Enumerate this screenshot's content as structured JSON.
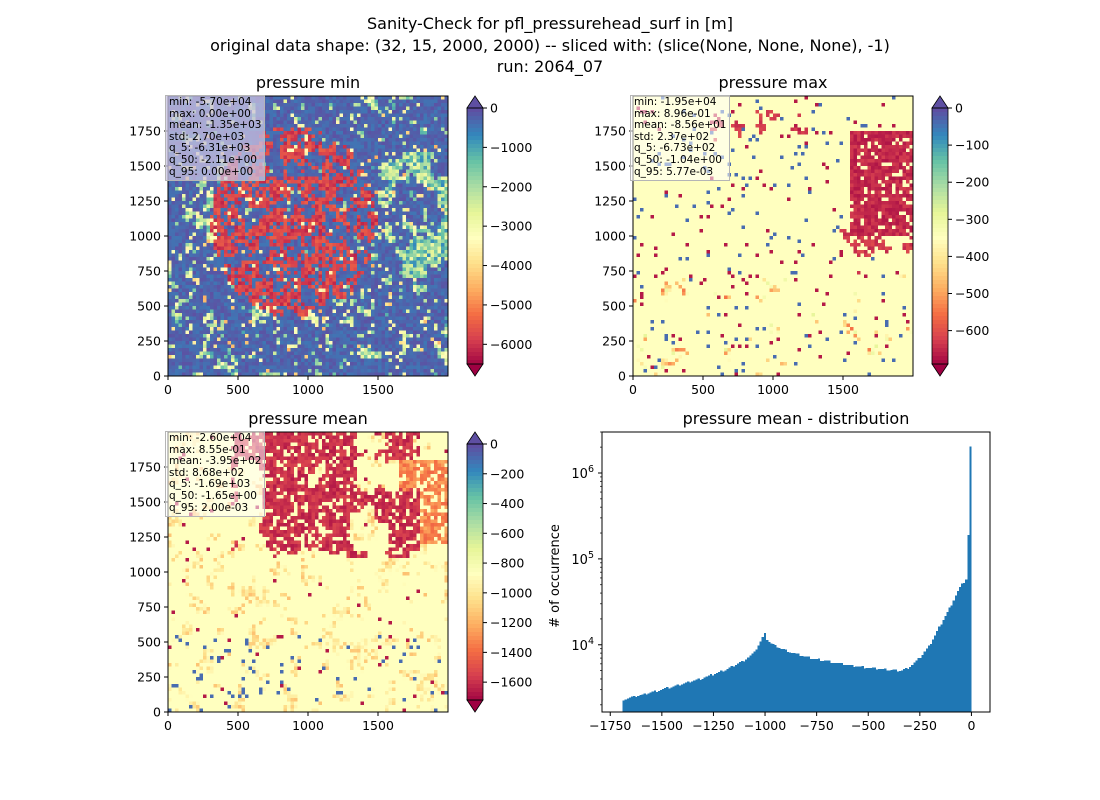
{
  "figure": {
    "title_lines": [
      "Sanity-Check for pfl_pressurehead_surf in [m]",
      "original data shape: (32, 15, 2000, 2000) -- sliced with: (slice(None, None, None), -1)",
      "run: 2064_07"
    ]
  },
  "colors": {
    "spectral": [
      "#9e0142",
      "#d53e4f",
      "#f46d43",
      "#fdae61",
      "#fee08b",
      "#ffffbf",
      "#e6f598",
      "#abdda4",
      "#66c2a5",
      "#3288bd",
      "#5e4fa2"
    ],
    "hist_bar": "#1f77b4"
  },
  "chart_data": [
    {
      "type": "heatmap",
      "title": "pressure min",
      "x_ticks": [
        "0",
        "500",
        "1000",
        "1500"
      ],
      "y_ticks": [
        "0",
        "250",
        "500",
        "750",
        "1000",
        "1250",
        "1500",
        "1750"
      ],
      "xlim": [
        0,
        2000
      ],
      "ylim": [
        0,
        2000
      ],
      "colorbar": {
        "range": [
          -6500,
          0
        ],
        "ticks": [
          "0",
          "−1000",
          "−2000",
          "−3000",
          "−4000",
          "−5000",
          "−6000"
        ],
        "tick_values": [
          0,
          -1000,
          -2000,
          -3000,
          -4000,
          -5000,
          -6000
        ],
        "extend": "both"
      },
      "stats": [
        "min: -5.70e+04",
        "max: 0.00e+00",
        "mean: -1.35e+03",
        "std: 2.70e+03",
        "q_5: -6.31e+03",
        "q_50: -2.11e+00",
        "q_95: 0.00e+00"
      ]
    },
    {
      "type": "heatmap",
      "title": "pressure max",
      "x_ticks": [
        "0",
        "500",
        "1000",
        "1500"
      ],
      "y_ticks": [
        "0",
        "250",
        "500",
        "750",
        "1000",
        "1250",
        "1500",
        "1750"
      ],
      "xlim": [
        0,
        2000
      ],
      "ylim": [
        0,
        2000
      ],
      "colorbar": {
        "range": [
          -690,
          0
        ],
        "ticks": [
          "0",
          "−100",
          "−200",
          "−300",
          "−400",
          "−500",
          "−600"
        ],
        "tick_values": [
          0,
          -100,
          -200,
          -300,
          -400,
          -500,
          -600
        ],
        "extend": "both"
      },
      "stats": [
        "min: -1.95e+04",
        "max: 8.96e-01",
        "mean: -8.56e+01",
        "std: 2.37e+02",
        "q_5: -6.73e+02",
        "q_50: -1.04e+00",
        "q_95: 5.77e-03"
      ]
    },
    {
      "type": "heatmap",
      "title": "pressure mean",
      "x_ticks": [
        "0",
        "500",
        "1000",
        "1500"
      ],
      "y_ticks": [
        "0",
        "250",
        "500",
        "750",
        "1000",
        "1250",
        "1500",
        "1750"
      ],
      "xlim": [
        0,
        2000
      ],
      "ylim": [
        0,
        2000
      ],
      "colorbar": {
        "range": [
          -1720,
          0
        ],
        "ticks": [
          "0",
          "−200",
          "−400",
          "−600",
          "−800",
          "−1000",
          "−1200",
          "−1400",
          "−1600"
        ],
        "tick_values": [
          0,
          -200,
          -400,
          -600,
          -800,
          -1000,
          -1200,
          -1400,
          -1600
        ],
        "extend": "both"
      },
      "stats": [
        "min: -2.60e+04",
        "max: 8.55e-01",
        "mean: -3.95e+02",
        "std: 8.68e+02",
        "q_5: -1.69e+03",
        "q_50: -1.65e+00",
        "q_95: 2.00e-03"
      ]
    },
    {
      "type": "bar",
      "title": "pressure mean - distribution",
      "ylabel": "# of occurrence",
      "yscale": "log",
      "xlim": [
        -1790,
        90
      ],
      "ylim": [
        1650,
        3000000
      ],
      "x_ticks": [
        "−1750",
        "−1500",
        "−1250",
        "−1000",
        "−750",
        "−500",
        "−250",
        "0"
      ],
      "x_tick_values": [
        -1750,
        -1500,
        -1250,
        -1000,
        -750,
        -500,
        -250,
        0
      ],
      "y_ticks": [
        {
          "base": "10",
          "exp": "4",
          "value": 10000
        },
        {
          "base": "10",
          "exp": "5",
          "value": 100000
        },
        {
          "base": "10",
          "exp": "6",
          "value": 1000000
        }
      ],
      "bin_edges": [
        -1690,
        0
      ],
      "anchors": [
        [
          -1690,
          2300
        ],
        [
          -1600,
          2600
        ],
        [
          -1500,
          3000
        ],
        [
          -1400,
          3500
        ],
        [
          -1300,
          4100
        ],
        [
          -1200,
          5000
        ],
        [
          -1100,
          6600
        ],
        [
          -1050,
          8200
        ],
        [
          -1000,
          13500
        ],
        [
          -990,
          11500
        ],
        [
          -970,
          10300
        ],
        [
          -920,
          9000
        ],
        [
          -850,
          7800
        ],
        [
          -780,
          7000
        ],
        [
          -700,
          6500
        ],
        [
          -600,
          5800
        ],
        [
          -500,
          5400
        ],
        [
          -400,
          5100
        ],
        [
          -340,
          5000
        ],
        [
          -300,
          5500
        ],
        [
          -250,
          7000
        ],
        [
          -200,
          10000
        ],
        [
          -150,
          17000
        ],
        [
          -100,
          28000
        ],
        [
          -60,
          45000
        ],
        [
          -40,
          52000
        ],
        [
          -20,
          60000
        ],
        [
          -5,
          2000000
        ]
      ]
    }
  ]
}
